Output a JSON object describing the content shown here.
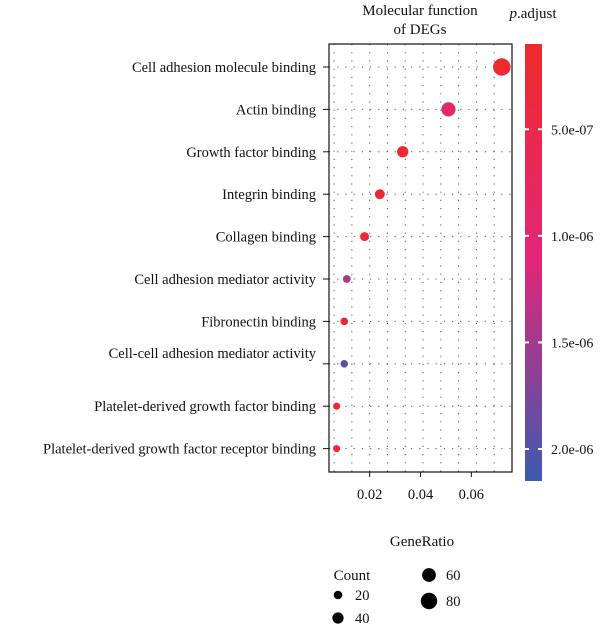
{
  "chart_data": {
    "type": "scatter",
    "title": "Molecular function\nof DEGs",
    "xlabel": "GeneRatio",
    "ylabel": "",
    "xlim": [
      0.004,
      0.076
    ],
    "xticks": [
      0.02,
      0.04,
      0.06
    ],
    "xtick_labels": [
      "0.02",
      "0.04",
      "0.06"
    ],
    "grid": "dotted",
    "categories": [
      "Cell adhesion molecule binding",
      "Actin binding",
      "Growth factor binding",
      "Integrin binding",
      "Collagen binding",
      "Cell adhesion mediator activity",
      "Fibronectin binding",
      "Cell-cell adhesion mediator activity",
      "Platelet-derived growth factor binding",
      "Platelet-derived growth factor receptor binding"
    ],
    "points": [
      {
        "term": "Cell adhesion molecule binding",
        "gene_ratio": 0.072,
        "count": 88,
        "p_adjust": 1.5e-07
      },
      {
        "term": "Actin binding",
        "gene_ratio": 0.051,
        "count": 63,
        "p_adjust": 9e-07
      },
      {
        "term": "Growth factor binding",
        "gene_ratio": 0.033,
        "count": 41,
        "p_adjust": 2.5e-07
      },
      {
        "term": "Integrin binding",
        "gene_ratio": 0.024,
        "count": 30,
        "p_adjust": 2e-07
      },
      {
        "term": "Collagen binding",
        "gene_ratio": 0.018,
        "count": 23,
        "p_adjust": 2.2e-07
      },
      {
        "term": "Cell adhesion mediator activity",
        "gene_ratio": 0.011,
        "count": 14,
        "p_adjust": 1.5e-06
      },
      {
        "term": "Fibronectin binding",
        "gene_ratio": 0.01,
        "count": 12,
        "p_adjust": 2.5e-07
      },
      {
        "term": "Cell-cell adhesion mediator activity",
        "gene_ratio": 0.01,
        "count": 12,
        "p_adjust": 1.95e-06
      },
      {
        "term": "Platelet-derived growth factor binding",
        "gene_ratio": 0.007,
        "count": 8,
        "p_adjust": 2e-07
      },
      {
        "term": "Platelet-derived growth factor receptor binding",
        "gene_ratio": 0.007,
        "count": 8,
        "p_adjust": 3e-07
      }
    ],
    "color_legend": {
      "title_italic": "p",
      "title_rest": ".adjust",
      "range": [
        1e-07,
        2.15e-06
      ],
      "ticks": [
        5e-07,
        1e-06,
        1.5e-06,
        2e-06
      ],
      "tick_labels": [
        "5.0e-07",
        "1.0e-06",
        "1.5e-06",
        "2.0e-06"
      ],
      "low_color": "#ee2a2a",
      "mid_color": "#e1267a",
      "high_color": "#3a5bb0"
    },
    "size_legend": {
      "title": "Count",
      "values": [
        20,
        40,
        60,
        80
      ],
      "labels": [
        "20",
        "40",
        "60",
        "80"
      ]
    }
  }
}
